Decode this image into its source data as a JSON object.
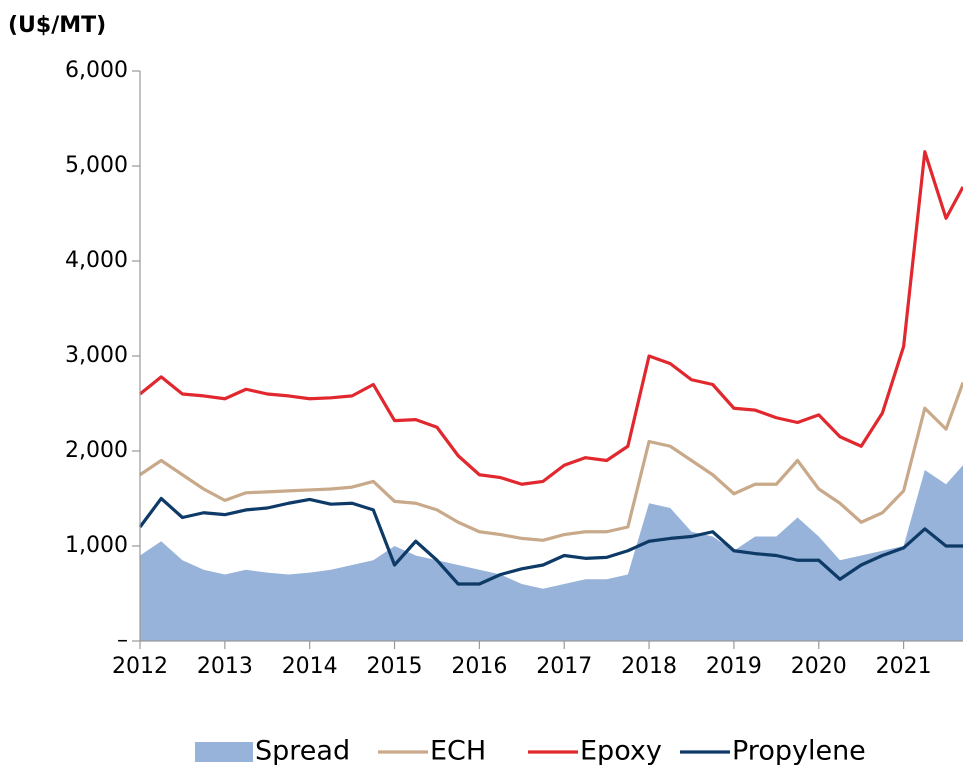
{
  "chart_data": {
    "type": "line",
    "unit_label": "(U$/MT)",
    "x": [
      2012.0,
      2012.25,
      2012.5,
      2012.75,
      2013.0,
      2013.25,
      2013.5,
      2013.75,
      2014.0,
      2014.25,
      2014.5,
      2014.75,
      2015.0,
      2015.25,
      2015.5,
      2015.75,
      2016.0,
      2016.25,
      2016.5,
      2016.75,
      2017.0,
      2017.25,
      2017.5,
      2017.75,
      2018.0,
      2018.25,
      2018.5,
      2018.75,
      2019.0,
      2019.25,
      2019.5,
      2019.75,
      2020.0,
      2020.25,
      2020.5,
      2020.75,
      2021.0,
      2021.25,
      2021.5,
      2021.7
    ],
    "series": [
      {
        "name": "Spread",
        "kind": "area",
        "color": "#98b3d9",
        "values": [
          900,
          1050,
          850,
          750,
          700,
          750,
          720,
          700,
          720,
          750,
          800,
          850,
          1000,
          900,
          850,
          800,
          750,
          700,
          600,
          550,
          600,
          650,
          650,
          700,
          1450,
          1400,
          1150,
          1100,
          950,
          1100,
          1100,
          1300,
          1100,
          850,
          900,
          950,
          1000,
          1800,
          1650,
          1850
        ]
      },
      {
        "name": "ECH",
        "kind": "line",
        "color": "#c8a98a",
        "values": [
          1750,
          1900,
          1750,
          1600,
          1480,
          1560,
          1570,
          1580,
          1590,
          1600,
          1620,
          1680,
          1470,
          1450,
          1380,
          1250,
          1150,
          1120,
          1080,
          1060,
          1120,
          1150,
          1150,
          1200,
          2100,
          2050,
          1900,
          1750,
          1550,
          1650,
          1650,
          1900,
          1600,
          1450,
          1250,
          1350,
          1580,
          2450,
          2230,
          2720
        ]
      },
      {
        "name": "Epoxy",
        "kind": "line",
        "color": "#e0282e",
        "values": [
          2600,
          2780,
          2600,
          2580,
          2550,
          2650,
          2600,
          2580,
          2550,
          2560,
          2580,
          2700,
          2320,
          2330,
          2250,
          1950,
          1750,
          1720,
          1650,
          1680,
          1850,
          1930,
          1900,
          2050,
          3000,
          2920,
          2750,
          2700,
          2450,
          2430,
          2350,
          2300,
          2380,
          2150,
          2050,
          2400,
          3100,
          5150,
          4450,
          4780
        ]
      },
      {
        "name": "Propylene",
        "kind": "line",
        "color": "#0d3a66",
        "values": [
          1200,
          1500,
          1300,
          1350,
          1330,
          1380,
          1400,
          1450,
          1490,
          1440,
          1450,
          1380,
          800,
          1050,
          850,
          600,
          600,
          700,
          760,
          800,
          900,
          870,
          880,
          950,
          1050,
          1080,
          1100,
          1150,
          950,
          920,
          900,
          850,
          850,
          650,
          800,
          900,
          980,
          1180,
          1000,
          1000
        ]
      }
    ],
    "xlim": [
      2012,
      2021.7
    ],
    "xticks": [
      2012,
      2013,
      2014,
      2015,
      2016,
      2017,
      2018,
      2019,
      2020,
      2021
    ],
    "ylim": [
      0,
      6000
    ],
    "yticks": [
      {
        "value": 0,
        "label": "–"
      },
      {
        "value": 1000,
        "label": "1,000"
      },
      {
        "value": 2000,
        "label": "2,000"
      },
      {
        "value": 3000,
        "label": "3,000"
      },
      {
        "value": 4000,
        "label": "4,000"
      },
      {
        "value": 5000,
        "label": "5,000"
      },
      {
        "value": 6000,
        "label": "6,000"
      }
    ],
    "legend": "bottom"
  }
}
